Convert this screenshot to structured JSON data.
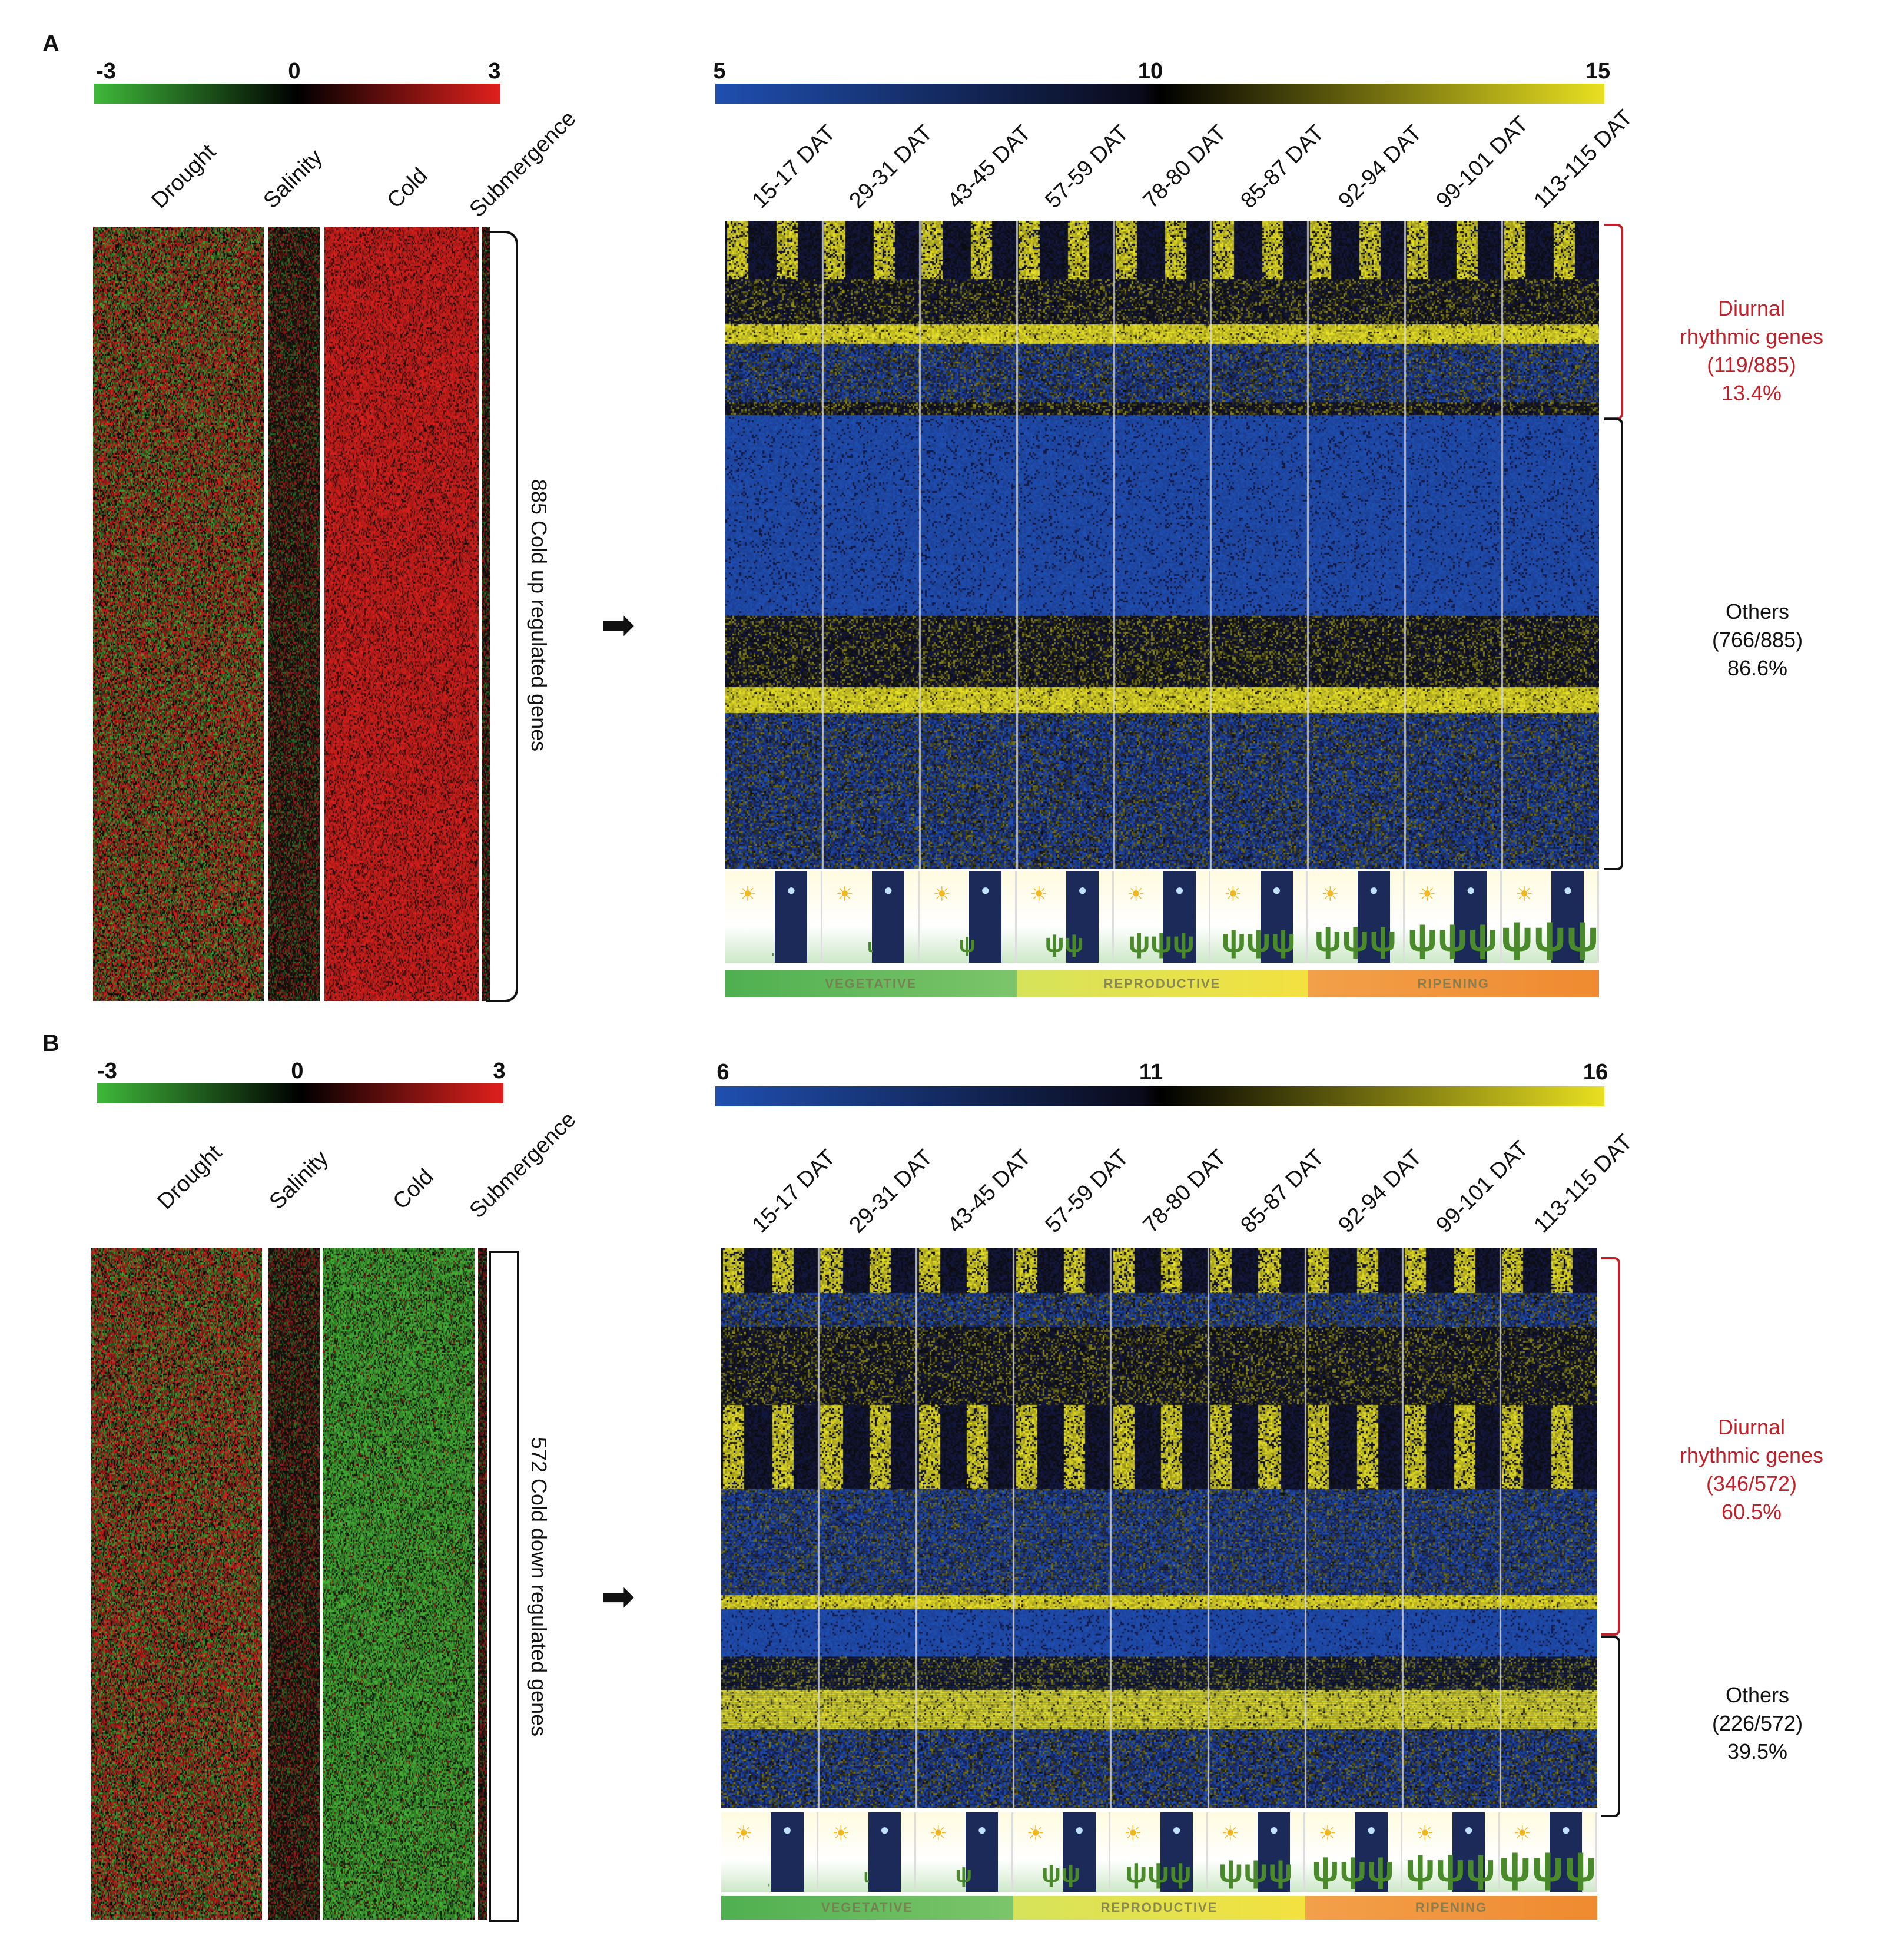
{
  "panels": [
    {
      "label": "A",
      "left_scale": {
        "min": "-3",
        "mid": "0",
        "max": "3"
      },
      "right_scale": {
        "min": "5",
        "mid": "10",
        "max": "15"
      },
      "conditions": [
        "Drought",
        "Salinity",
        "Cold",
        "Submergence"
      ],
      "gene_set_label": "885 Cold up regulated genes",
      "arrow": "➡",
      "time_points": [
        "15-17 DAT",
        "29-31 DAT",
        "43-45 DAT",
        "57-59 DAT",
        "78-80 DAT",
        "85-87 DAT",
        "92-94 DAT",
        "99-101 DAT",
        "113-115 DAT"
      ],
      "diurnal": {
        "title": "Diurnal rhythmic genes",
        "count": "(119/885)",
        "pct": "13.4%"
      },
      "others": {
        "title": "Others",
        "count": "(766/885)",
        "pct": "86.6%"
      },
      "stages": [
        "VEGETATIVE",
        "REPRODUCTIVE",
        "RIPENING"
      ]
    },
    {
      "label": "B",
      "left_scale": {
        "min": "-3",
        "mid": "0",
        "max": "3"
      },
      "right_scale": {
        "min": "6",
        "mid": "11",
        "max": "16"
      },
      "conditions": [
        "Drought",
        "Salinity",
        "Cold",
        "Submergence"
      ],
      "gene_set_label": "572 Cold down regulated genes",
      "arrow": "➡",
      "time_points": [
        "15-17 DAT",
        "29-31 DAT",
        "43-45 DAT",
        "57-59 DAT",
        "78-80 DAT",
        "85-87 DAT",
        "92-94 DAT",
        "99-101 DAT",
        "113-115 DAT"
      ],
      "diurnal": {
        "title": "Diurnal rhythmic genes",
        "count": "(346/572)",
        "pct": "60.5%"
      },
      "others": {
        "title": "Others",
        "count": "(226/572)",
        "pct": "39.5%"
      },
      "stages": [
        "VEGETATIVE",
        "REPRODUCTIVE",
        "RIPENING"
      ]
    }
  ],
  "colors": {
    "green": "#3fb83a",
    "red": "#e0201c",
    "blue": "#1f4fb0",
    "yellow": "#e8e020",
    "diurnal": "#c0202a"
  }
}
